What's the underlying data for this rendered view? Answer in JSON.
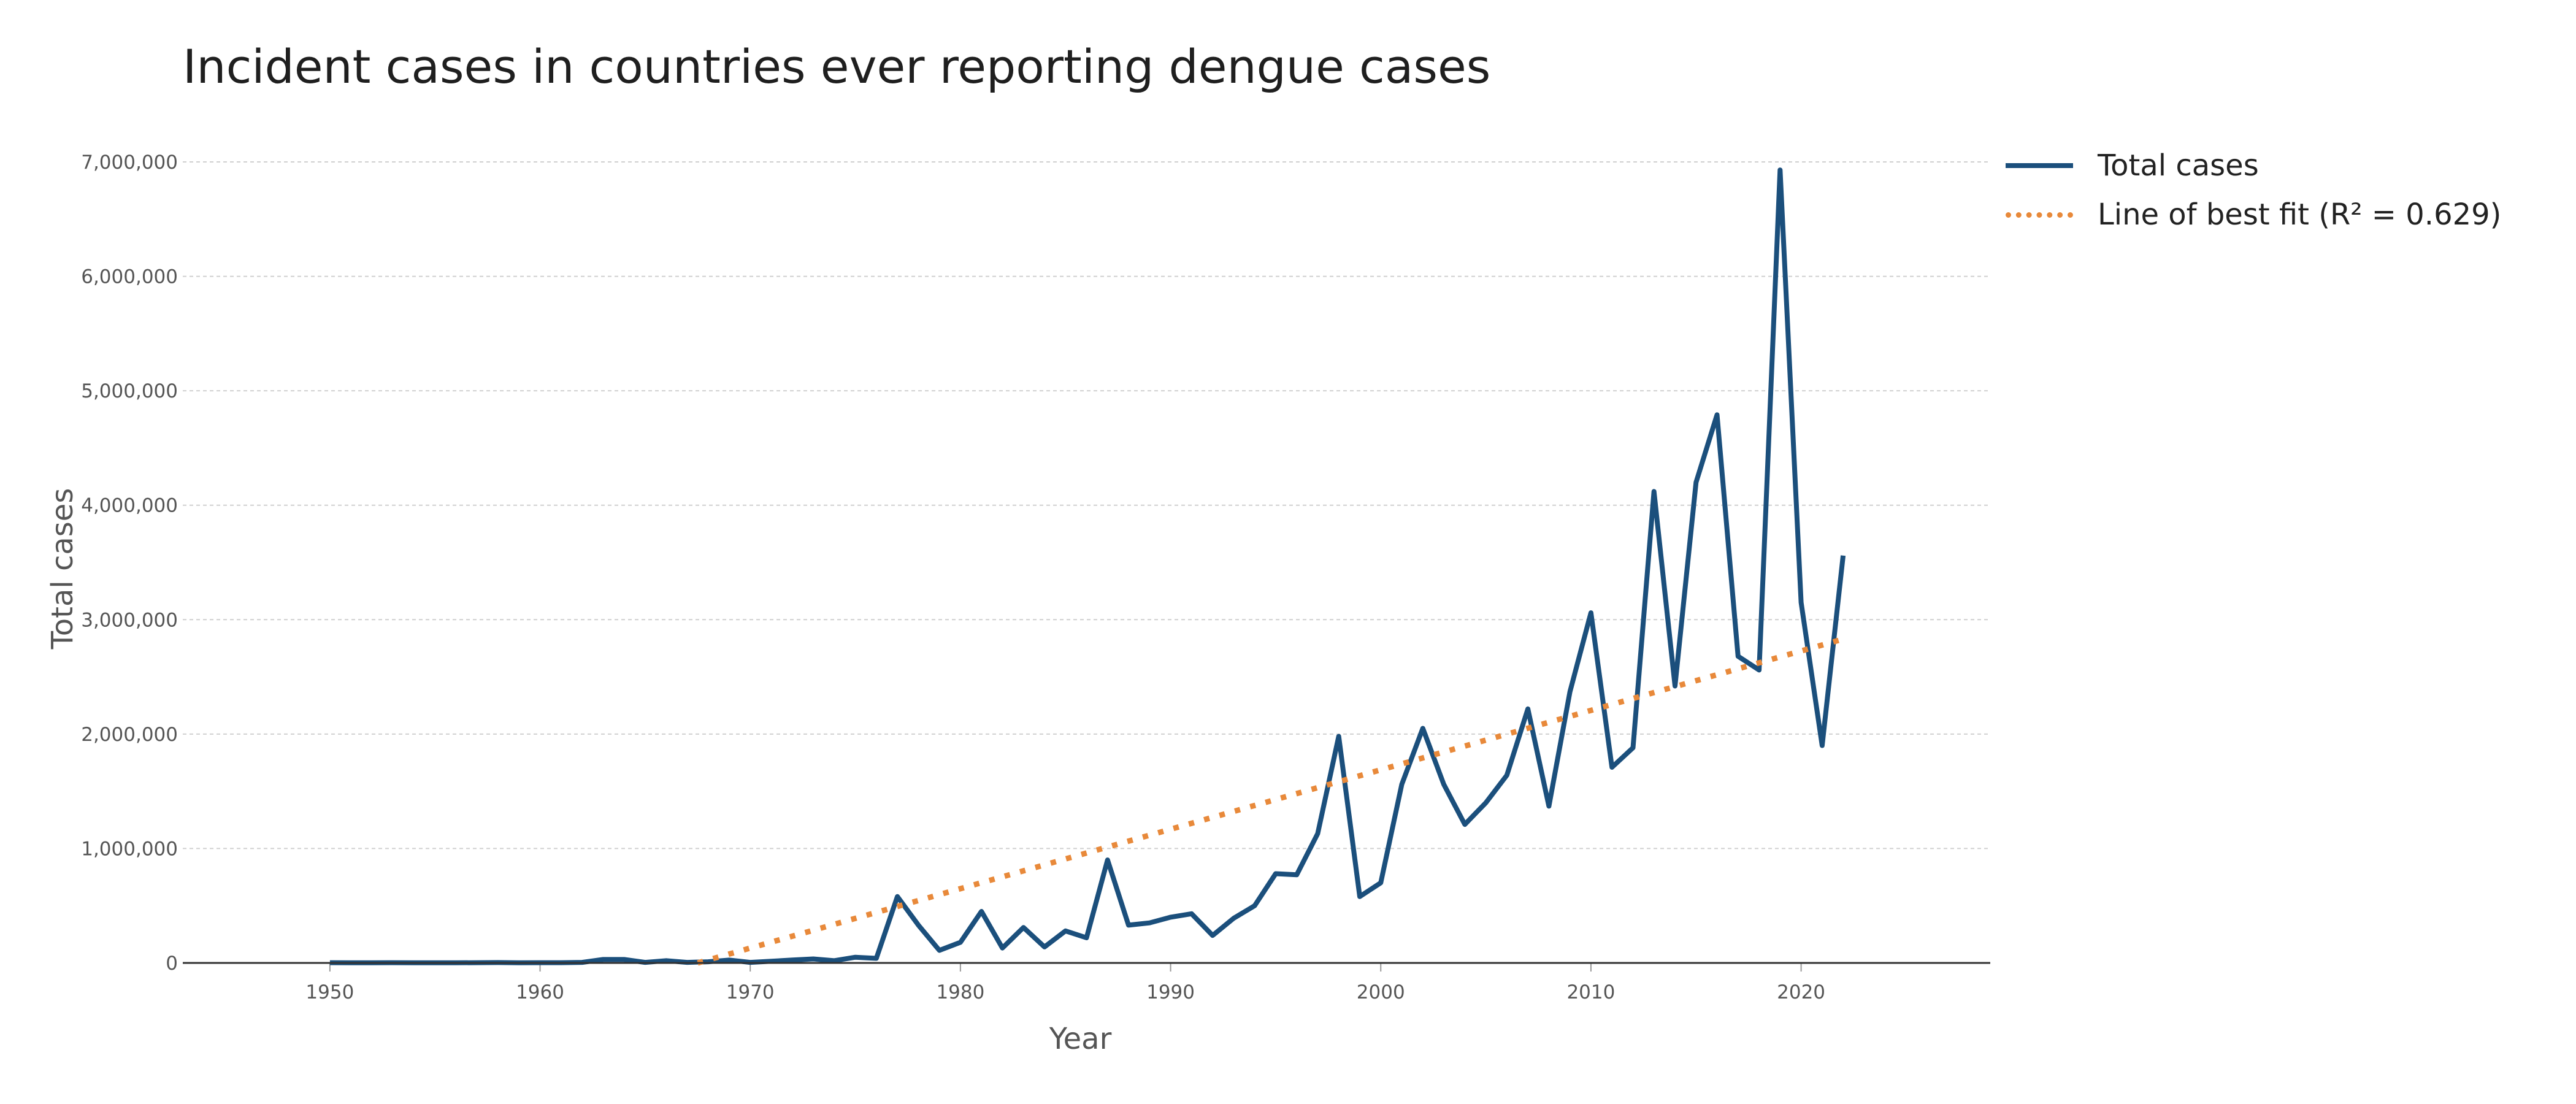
{
  "chart_data": {
    "type": "line",
    "title": "Incident cases in countries ever reporting dengue cases",
    "xlabel": "Year",
    "ylabel": "Total cases",
    "xlim": [
      1943,
      2029
    ],
    "ylim": [
      0,
      7000000
    ],
    "x_ticks": [
      "1950",
      "1960",
      "1970",
      "1980",
      "1990",
      "2000",
      "2010",
      "2020"
    ],
    "y_ticks": [
      "0",
      "1,000,000",
      "2,000,000",
      "3,000,000",
      "4,000,000",
      "5,000,000",
      "6,000,000",
      "7,000,000"
    ],
    "grid": "horizontal",
    "legend_position": "right",
    "series": [
      {
        "name": "Total cases",
        "color": "#1b4f7c",
        "style": "solid",
        "x": [
          1950,
          1951,
          1952,
          1953,
          1954,
          1955,
          1956,
          1957,
          1958,
          1959,
          1960,
          1961,
          1962,
          1963,
          1964,
          1965,
          1966,
          1967,
          1968,
          1969,
          1970,
          1971,
          1972,
          1973,
          1974,
          1975,
          1976,
          1977,
          1978,
          1979,
          1980,
          1981,
          1982,
          1983,
          1984,
          1985,
          1986,
          1987,
          1988,
          1989,
          1990,
          1991,
          1992,
          1993,
          1994,
          1995,
          1996,
          1997,
          1998,
          1999,
          2000,
          2001,
          2002,
          2003,
          2004,
          2005,
          2006,
          2007,
          2008,
          2009,
          2010,
          2011,
          2012,
          2013,
          2014,
          2015,
          2016,
          2017,
          2018,
          2019,
          2020,
          2021,
          2022
        ],
        "y": [
          2000,
          1500,
          1500,
          2000,
          1500,
          1500,
          1000,
          2000,
          3000,
          1500,
          2000,
          2000,
          5000,
          30000,
          30000,
          5000,
          20000,
          5000,
          10000,
          25000,
          5000,
          15000,
          25000,
          35000,
          20000,
          50000,
          40000,
          580000,
          330000,
          110000,
          180000,
          450000,
          130000,
          310000,
          140000,
          280000,
          220000,
          900000,
          330000,
          350000,
          400000,
          430000,
          240000,
          390000,
          500000,
          780000,
          770000,
          1130000,
          1980000,
          580000,
          700000,
          1560000,
          2050000,
          1560000,
          1210000,
          1400000,
          1640000,
          2220000,
          1370000,
          2370000,
          3060000,
          1710000,
          1880000,
          4120000,
          2420000,
          4200000,
          4790000,
          2680000,
          2560000,
          6930000,
          3150000,
          1900000,
          3560000
        ]
      },
      {
        "name": "Line of best fit (R² = 0.629)",
        "color": "#e8893a",
        "style": "dotted",
        "x": [
          1967.5,
          2022
        ],
        "y": [
          0,
          2830000
        ]
      }
    ]
  }
}
